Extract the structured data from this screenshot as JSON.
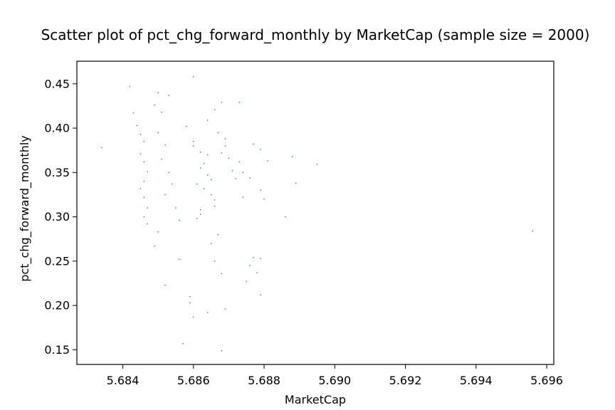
{
  "chart_data": {
    "type": "scatter",
    "title": "Scatter plot of pct_chg_forward_monthly by MarketCap (sample size = 2000)",
    "xlabel": "MarketCap",
    "ylabel": "pct_chg_forward_monthly",
    "xlim": [
      5.6827,
      5.6962
    ],
    "ylim": [
      0.1335,
      0.4755
    ],
    "xticks": [
      "5.684",
      "5.686",
      "5.688",
      "5.690",
      "5.692",
      "5.694",
      "5.696"
    ],
    "yticks": [
      "0.15",
      "0.20",
      "0.25",
      "0.30",
      "0.35",
      "0.40",
      "0.45"
    ],
    "grid": false,
    "legend": "none",
    "point_color": "#1f77b4",
    "sample_size": 2000,
    "points": [
      [
        5.6834,
        0.378
      ],
      [
        5.6842,
        0.447
      ],
      [
        5.6843,
        0.417
      ],
      [
        5.6844,
        0.403
      ],
      [
        5.6845,
        0.393
      ],
      [
        5.6846,
        0.385
      ],
      [
        5.6845,
        0.371
      ],
      [
        5.6846,
        0.362
      ],
      [
        5.6847,
        0.351
      ],
      [
        5.6846,
        0.34
      ],
      [
        5.6845,
        0.332
      ],
      [
        5.6846,
        0.322
      ],
      [
        5.6847,
        0.31
      ],
      [
        5.6846,
        0.3
      ],
      [
        5.6847,
        0.292
      ],
      [
        5.6849,
        0.426
      ],
      [
        5.685,
        0.44
      ],
      [
        5.6851,
        0.418
      ],
      [
        5.685,
        0.395
      ],
      [
        5.6852,
        0.381
      ],
      [
        5.6851,
        0.365
      ],
      [
        5.6853,
        0.35
      ],
      [
        5.6854,
        0.337
      ],
      [
        5.6852,
        0.325
      ],
      [
        5.6855,
        0.31
      ],
      [
        5.6856,
        0.296
      ],
      [
        5.685,
        0.283
      ],
      [
        5.6849,
        0.267
      ],
      [
        5.6856,
        0.252
      ],
      [
        5.6852,
        0.223
      ],
      [
        5.6853,
        0.437
      ],
      [
        5.6858,
        0.402
      ],
      [
        5.686,
        0.385
      ],
      [
        5.6862,
        0.373
      ],
      [
        5.6863,
        0.36
      ],
      [
        5.6864,
        0.347
      ],
      [
        5.6861,
        0.337
      ],
      [
        5.6865,
        0.325
      ],
      [
        5.6866,
        0.312
      ],
      [
        5.6862,
        0.303
      ],
      [
        5.686,
        0.38
      ],
      [
        5.6864,
        0.37
      ],
      [
        5.6862,
        0.355
      ],
      [
        5.6865,
        0.342
      ],
      [
        5.6863,
        0.332
      ],
      [
        5.6866,
        0.319
      ],
      [
        5.6862,
        0.308
      ],
      [
        5.6861,
        0.298
      ],
      [
        5.6867,
        0.395
      ],
      [
        5.6864,
        0.409
      ],
      [
        5.6866,
        0.421
      ],
      [
        5.686,
        0.458
      ],
      [
        5.6868,
        0.429
      ],
      [
        5.6869,
        0.38
      ],
      [
        5.687,
        0.366
      ],
      [
        5.6871,
        0.352
      ],
      [
        5.6872,
        0.343
      ],
      [
        5.6869,
        0.388
      ],
      [
        5.6868,
        0.372
      ],
      [
        5.6873,
        0.362
      ],
      [
        5.6874,
        0.35
      ],
      [
        5.6867,
        0.28
      ],
      [
        5.6865,
        0.27
      ],
      [
        5.6866,
        0.25
      ],
      [
        5.6868,
        0.236
      ],
      [
        5.6873,
        0.429
      ],
      [
        5.6877,
        0.382
      ],
      [
        5.6879,
        0.376
      ],
      [
        5.6881,
        0.363
      ],
      [
        5.6876,
        0.344
      ],
      [
        5.6879,
        0.33
      ],
      [
        5.688,
        0.32
      ],
      [
        5.6874,
        0.322
      ],
      [
        5.6877,
        0.254
      ],
      [
        5.6876,
        0.245
      ],
      [
        5.6879,
        0.253
      ],
      [
        5.6878,
        0.237
      ],
      [
        5.6875,
        0.227
      ],
      [
        5.6879,
        0.212
      ],
      [
        5.6886,
        0.3
      ],
      [
        5.6888,
        0.368
      ],
      [
        5.6889,
        0.338
      ],
      [
        5.6895,
        0.359
      ],
      [
        5.6859,
        0.21
      ],
      [
        5.6859,
        0.203
      ],
      [
        5.686,
        0.187
      ],
      [
        5.6864,
        0.192
      ],
      [
        5.6857,
        0.157
      ],
      [
        5.6869,
        0.196
      ],
      [
        5.6868,
        0.149
      ],
      [
        5.6956,
        0.284
      ]
    ]
  }
}
